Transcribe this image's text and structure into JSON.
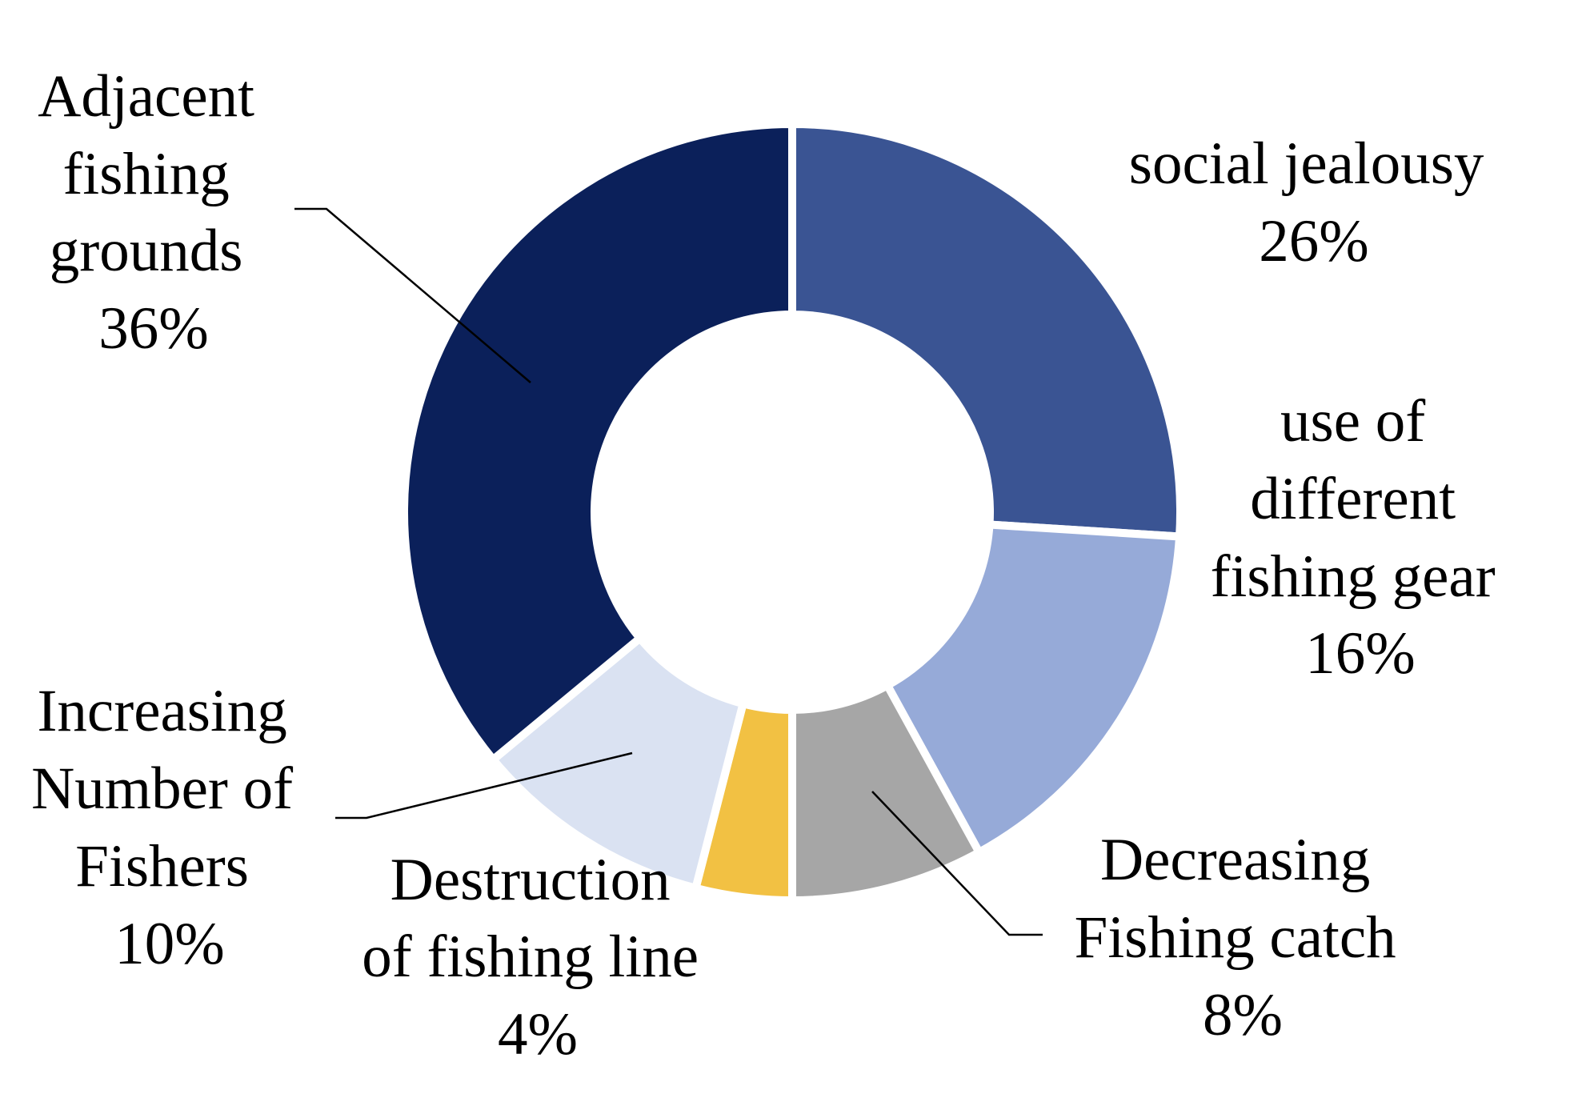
{
  "chart_data": {
    "type": "pie",
    "donut": true,
    "legend": "none",
    "slices": [
      {
        "label": "social jealousy",
        "value": 26,
        "pct_label": "26%",
        "color": "#3A5493"
      },
      {
        "label": "use of different fishing gear",
        "value": 16,
        "pct_label": "16%",
        "color": "#96AAD8"
      },
      {
        "label": "Decreasing Fishing catch",
        "value": 8,
        "pct_label": "8%",
        "color": "#A6A6A6"
      },
      {
        "label": "Destruction of fishing line",
        "value": 4,
        "pct_label": "4%",
        "color": "#F2C143"
      },
      {
        "label": "Increasing Number of Fishers",
        "value": 10,
        "pct_label": "10%",
        "color": "#DAE2F2"
      },
      {
        "label": "Adjacent fishing grounds",
        "value": 36,
        "pct_label": "36%",
        "color": "#0B205A"
      }
    ]
  }
}
